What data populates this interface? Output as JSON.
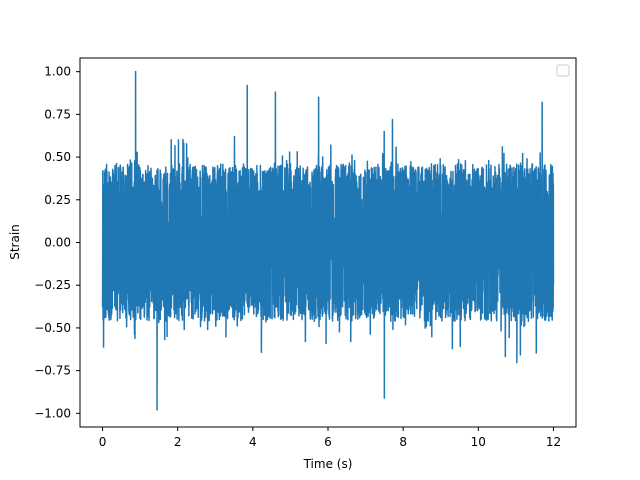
{
  "chart_data": {
    "type": "line",
    "title": "",
    "xlabel": "Time (s)",
    "ylabel": "Strain",
    "xlim": [
      -0.6,
      12.6
    ],
    "ylim": [
      -1.08,
      1.08
    ],
    "xticks": [
      0,
      2,
      4,
      6,
      8,
      10,
      12
    ],
    "xtick_labels": [
      "0",
      "2",
      "4",
      "6",
      "8",
      "10",
      "12"
    ],
    "yticks": [
      1.0,
      0.75,
      0.5,
      0.25,
      0.0,
      -0.25,
      -0.5,
      -0.75,
      -1.0
    ],
    "ytick_labels": [
      "1.00",
      "0.75",
      "0.50",
      "0.25",
      "0.00",
      "−0.25",
      "−0.50",
      "−0.75",
      "−1.00"
    ],
    "grid": false,
    "legend": {
      "placement": "top-right",
      "entries": []
    },
    "series": [
      {
        "color": "#1f77b4",
        "x_start": 0,
        "x_end": 12,
        "typical_range": [
          -0.5,
          0.5
        ],
        "max": 1.0,
        "min": -0.98,
        "description_points": [
          {
            "x": 0.0,
            "y": 0.45
          },
          {
            "x": 0.0,
            "y": -0.38
          },
          {
            "x": 0.88,
            "y": 1.0
          },
          {
            "x": 1.45,
            "y": -0.98
          },
          {
            "x": 3.85,
            "y": 0.92
          },
          {
            "x": 4.6,
            "y": 0.88
          },
          {
            "x": 5.75,
            "y": 0.85
          },
          {
            "x": 7.5,
            "y": -0.91
          },
          {
            "x": 11.7,
            "y": 0.82
          },
          {
            "x": 12.0,
            "y": 0.4
          },
          {
            "x": 12.0,
            "y": -0.25
          }
        ]
      }
    ]
  }
}
